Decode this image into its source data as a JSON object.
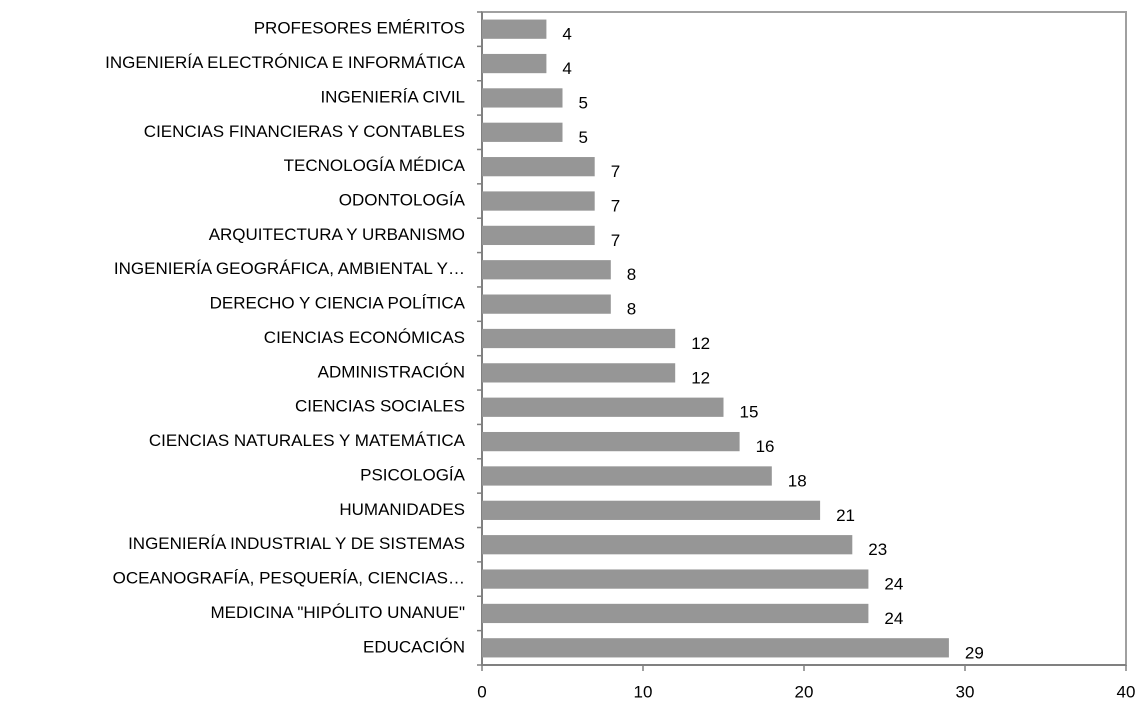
{
  "chart_data": {
    "type": "barh",
    "categories": [
      "PROFESORES EMÉRITOS",
      "INGENIERÍA ELECTRÓNICA E INFORMÁTICA",
      "INGENIERÍA CIVIL",
      "CIENCIAS FINANCIERAS Y CONTABLES",
      "TECNOLOGÍA MÉDICA",
      "ODONTOLOGÍA",
      "ARQUITECTURA Y URBANISMO",
      "INGENIERÍA GEOGRÁFICA, AMBIENTAL Y…",
      "DERECHO Y CIENCIA POLÍTICA",
      "CIENCIAS ECONÓMICAS",
      "ADMINISTRACIÓN",
      "CIENCIAS SOCIALES",
      "CIENCIAS NATURALES Y MATEMÁTICA",
      "PSICOLOGÍA",
      "HUMANIDADES",
      "INGENIERÍA INDUSTRIAL Y DE SISTEMAS",
      "OCEANOGRAFÍA, PESQUERÍA, CIENCIAS…",
      "MEDICINA \"HIPÓLITO UNANUE\"",
      "EDUCACIÓN"
    ],
    "values": [
      4,
      4,
      5,
      5,
      7,
      7,
      7,
      8,
      8,
      12,
      12,
      15,
      16,
      18,
      21,
      23,
      24,
      24,
      29
    ],
    "color": "#969696",
    "xlim": [
      0,
      40
    ],
    "xticks": [
      0,
      10,
      20,
      30,
      40
    ]
  }
}
